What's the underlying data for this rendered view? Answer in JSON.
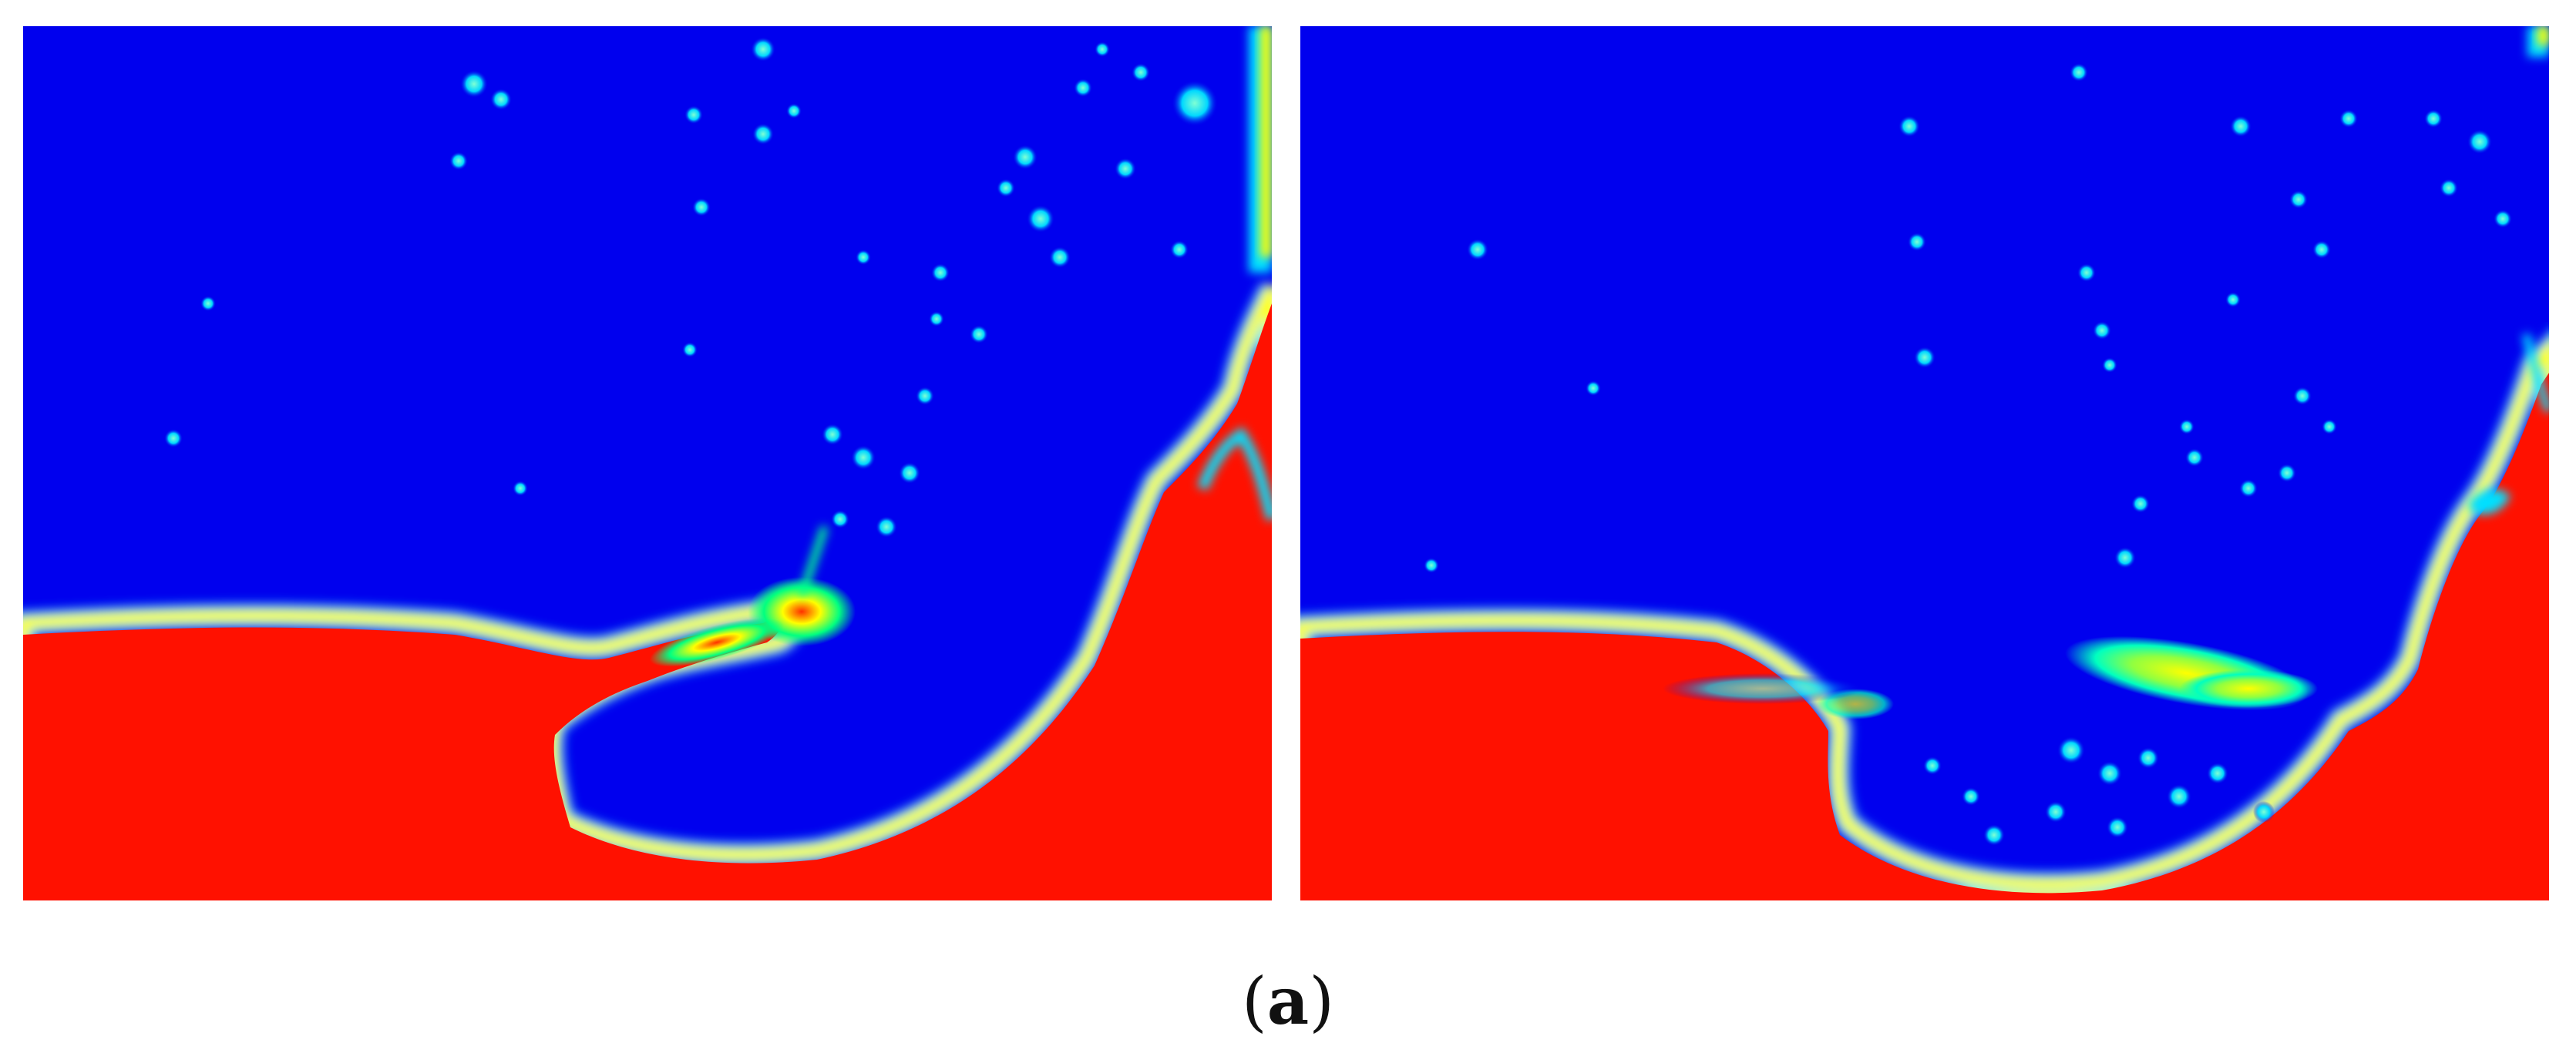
{
  "figure": {
    "caption": {
      "open": "(",
      "letter": "a",
      "close": ")"
    },
    "colormap": {
      "low": "#0000ee",
      "mid_low": "#00e0ff",
      "mid": "#00ff7f",
      "mid_high": "#ffff00",
      "high": "#ff1100"
    },
    "panels": [
      {
        "name": "left-panel"
      },
      {
        "name": "right-panel"
      }
    ]
  }
}
